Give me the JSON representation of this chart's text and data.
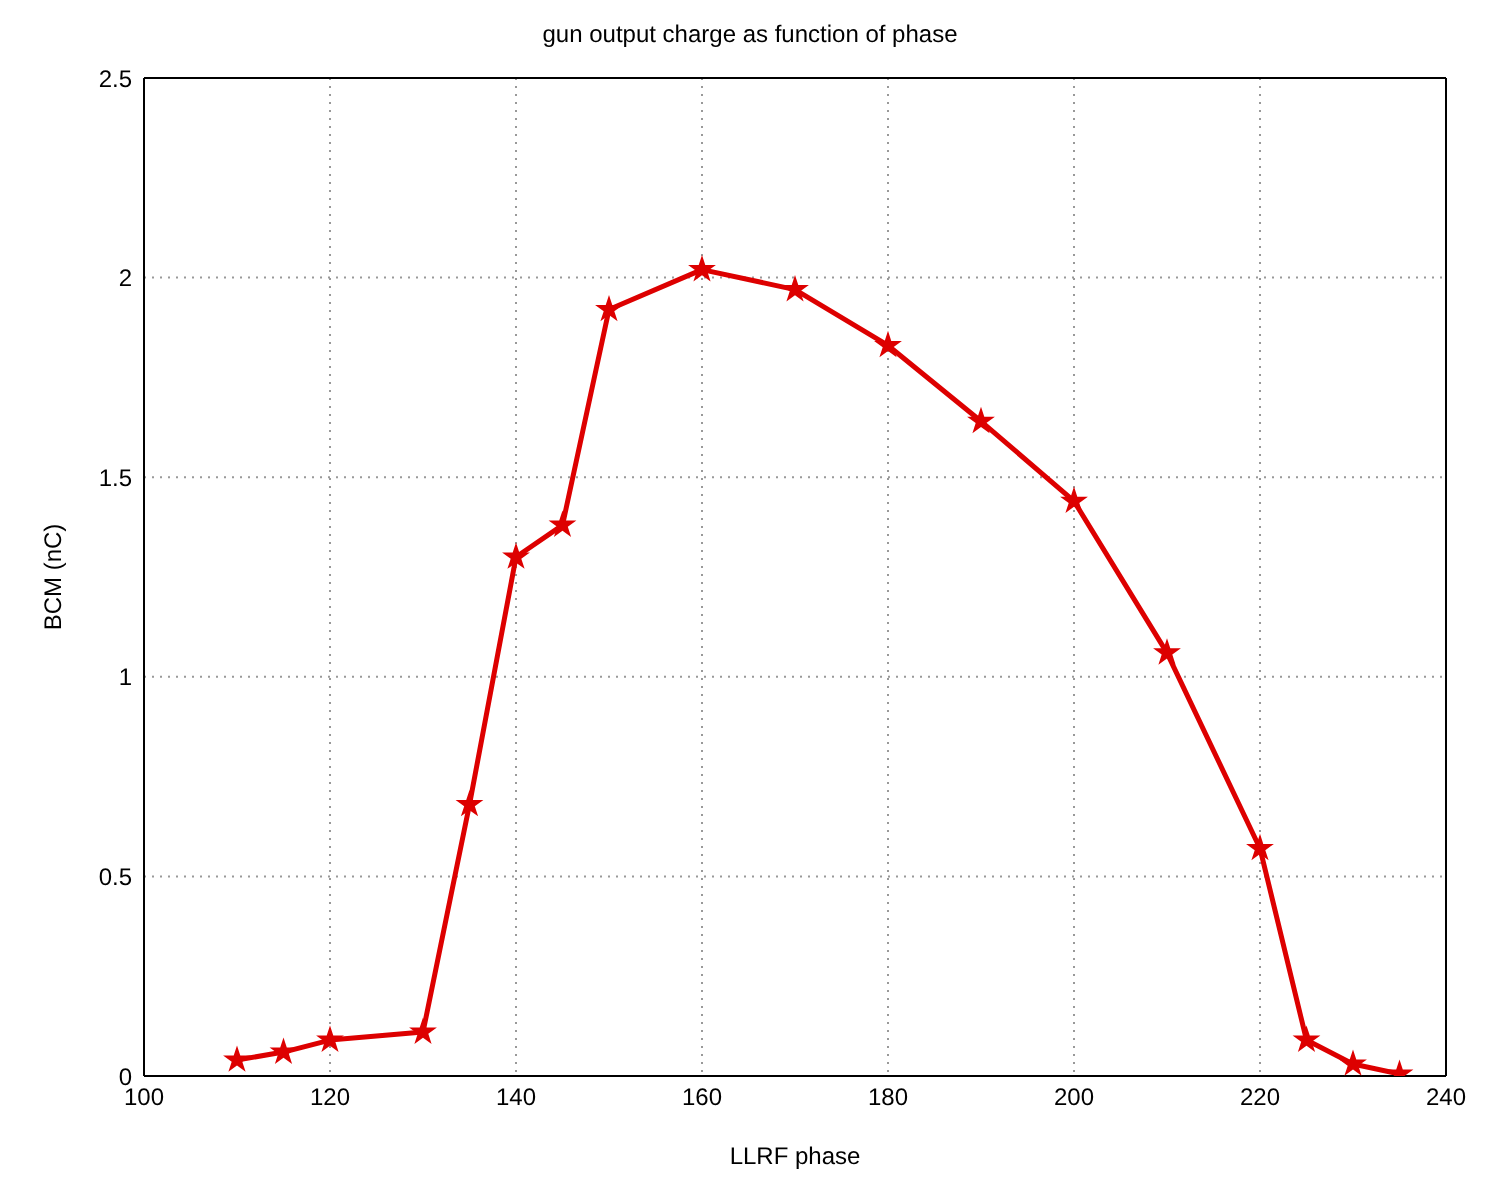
{
  "chart_data": {
    "type": "line",
    "title": "gun output charge as function of phase",
    "xlabel": "LLRF phase",
    "ylabel": "BCM (nC)",
    "x": [
      110,
      115,
      120,
      130,
      135,
      140,
      145,
      150,
      160,
      170,
      180,
      190,
      200,
      210,
      220,
      225,
      230,
      235
    ],
    "series": [
      {
        "color": "#dd0000",
        "values": [
          0.04,
          0.06,
          0.09,
          0.11,
          0.68,
          1.3,
          1.38,
          1.92,
          2.02,
          1.97,
          1.83,
          1.64,
          1.44,
          1.06,
          0.57,
          0.09,
          0.03,
          0.005
        ]
      }
    ],
    "xlim": [
      100,
      240
    ],
    "xticks": [
      100,
      120,
      140,
      160,
      180,
      200,
      220,
      240
    ],
    "ylim": [
      0,
      2.5
    ],
    "yticks": [
      0,
      0.5,
      1,
      1.5,
      2,
      2.5
    ],
    "grid": true,
    "marker": "star",
    "line_style": "solid",
    "legend": false
  }
}
